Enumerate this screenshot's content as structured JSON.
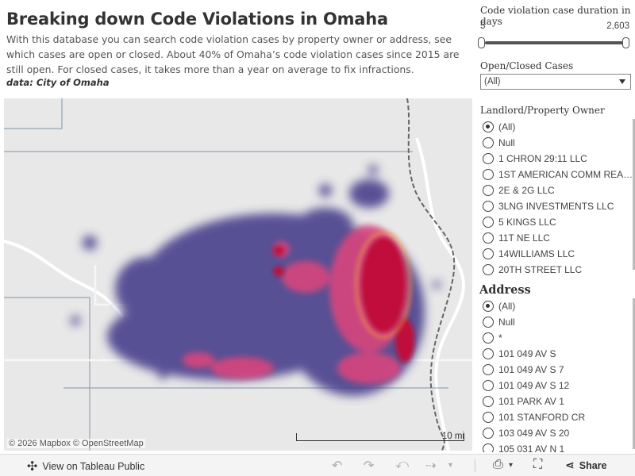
{
  "header": {
    "title": "Breaking down Code Violations in Omaha",
    "description": "With this database you can search code violation cases by property owner or address, see which cases are open or closed. About 40% of Omaha’s code violation cases since 2015 are still open. For  closed cases, it takes more than a year on average to fix infractions.",
    "source": "data: City of Omaha"
  },
  "map": {
    "attribution": "© 2026 Mapbox  © OpenStreetMap",
    "scale_label": "10 mi",
    "colors": {
      "low": "#4a3f8c",
      "mid": "#e0457b",
      "high": "#c0103b",
      "peak": "#f59a3a",
      "land": "#e8e8e8",
      "water": "#ffffff",
      "boundary": "#7e95ab"
    }
  },
  "filters": {
    "duration": {
      "label": "Code violation case duration in days",
      "min": "5",
      "max": "2,603",
      "range": [
        5,
        2603
      ],
      "selected": [
        5,
        2603
      ]
    },
    "open_closed": {
      "label": "Open/Closed Cases",
      "value": "(All)"
    },
    "owner": {
      "label": "Landlord/Property Owner",
      "options": [
        "(All)",
        "Null",
        "1 CHRON 29:11 LLC",
        "1ST AMERICAN COMM REAL...",
        "2E & 2G LLC",
        "3LNG INVESTMENTS LLC",
        "5 KINGS LLC",
        "11T NE LLC",
        "14WILLIAMS LLC",
        "20TH STREET LLC"
      ],
      "selected": "(All)"
    },
    "address": {
      "label": "Address",
      "options": [
        "(All)",
        "Null",
        "*",
        "101 049 AV S",
        "101 049 AV S 7",
        "101 049 AV S 12",
        "101 PARK AV 1",
        "101 STANFORD CR",
        "103 049 AV S 20",
        "105 031 AV N 1"
      ],
      "selected": "(All)"
    }
  },
  "footer": {
    "view_label": "View on Tableau Public",
    "share_label": "Share",
    "icons": [
      "tableau-logo-icon",
      "undo-icon",
      "redo-icon",
      "revert-icon",
      "refresh-icon",
      "download-icon",
      "fullscreen-icon",
      "share-icon"
    ]
  }
}
